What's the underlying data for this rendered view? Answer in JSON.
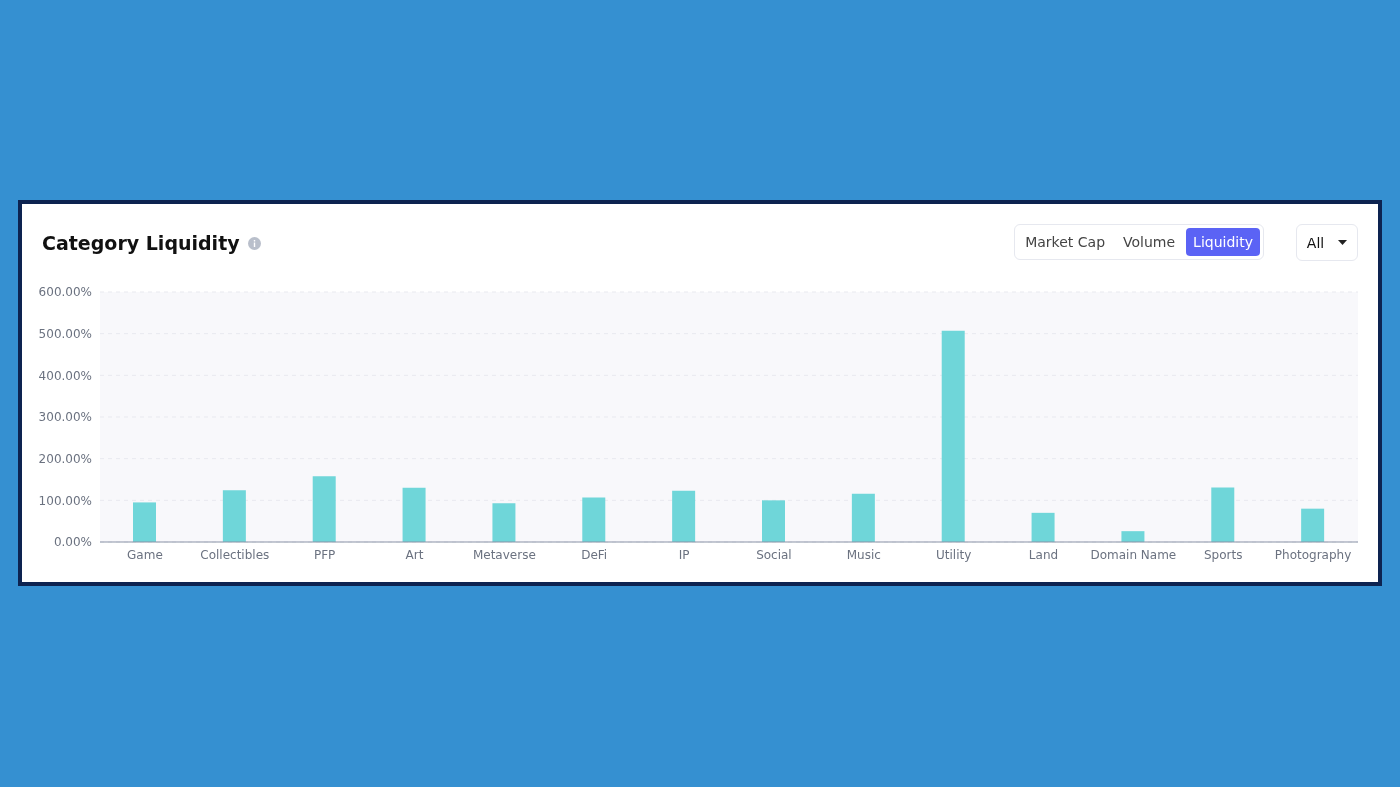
{
  "chart_data": {
    "type": "bar",
    "title": "Category Liquidity",
    "categories": [
      "Game",
      "Collectibles",
      "PFP",
      "Art",
      "Metaverse",
      "DeFi",
      "IP",
      "Social",
      "Music",
      "Utility",
      "Land",
      "Domain Name",
      "Sports",
      "Photography"
    ],
    "values": [
      95,
      124,
      158,
      130,
      93,
      107,
      123,
      100,
      116,
      507,
      70,
      26,
      131,
      80
    ],
    "color": "#6fd6d9",
    "ylim": [
      0,
      600
    ],
    "yticks": [
      {
        "value": 0,
        "label": "0.00%"
      },
      {
        "value": 100,
        "label": "100.00%"
      },
      {
        "value": 200,
        "label": "200.00%"
      },
      {
        "value": 300,
        "label": "300.00%"
      },
      {
        "value": 400,
        "label": "400.00%"
      },
      {
        "value": 500,
        "label": "500.00%"
      },
      {
        "value": 600,
        "label": "600.00%"
      }
    ],
    "grid": "y",
    "annotations": [
      "Market Cap",
      "Volume",
      "Liquidity",
      "All"
    ]
  }
}
